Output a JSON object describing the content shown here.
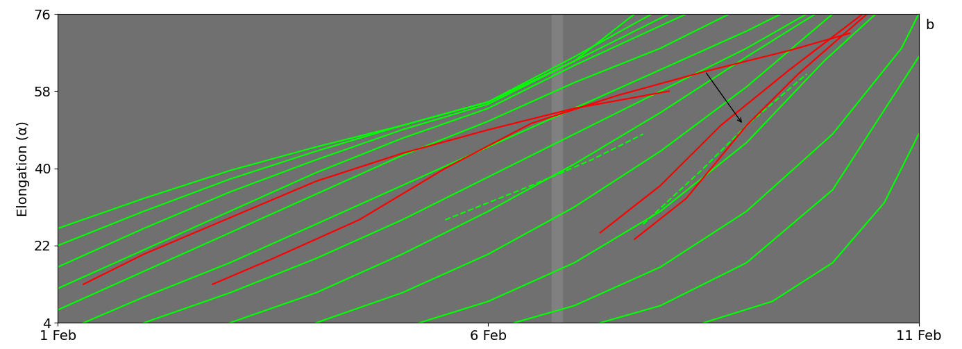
{
  "chart_data": {
    "type": "line",
    "panel_label": "b",
    "ylabel": "Elongation (α)",
    "xlim": [
      0,
      10
    ],
    "xticks": [
      {
        "value": 0,
        "label": "1 Feb"
      },
      {
        "value": 5,
        "label": "6 Feb"
      },
      {
        "value": 10,
        "label": "11 Feb"
      }
    ],
    "ylim": [
      4,
      76
    ],
    "yticks": [
      4,
      22,
      40,
      58,
      76
    ],
    "grid": false,
    "data_gap": [
      5.74,
      5.86
    ],
    "series": [
      {
        "color": "#00ff00",
        "line_style": "solid",
        "x": [
          0,
          1,
          2,
          3,
          4,
          5,
          6,
          6.7
        ],
        "values": [
          26,
          33,
          39.5,
          45,
          50,
          55.5,
          65,
          76
        ]
      },
      {
        "color": "#00ff00",
        "line_style": "solid",
        "x": [
          0,
          1,
          2,
          3,
          4,
          5,
          6,
          6.9
        ],
        "values": [
          22,
          30,
          37.5,
          44,
          50,
          55.5,
          66,
          76
        ]
      },
      {
        "color": "#00ff00",
        "line_style": "solid",
        "x": [
          0,
          1,
          2,
          3,
          4,
          5,
          6,
          7.1
        ],
        "values": [
          17,
          26,
          34.5,
          42,
          49,
          55,
          65,
          76
        ]
      },
      {
        "color": "#00ff00",
        "line_style": "solid",
        "x": [
          0,
          1,
          2,
          3,
          4,
          5,
          6,
          7.3
        ],
        "values": [
          12,
          21,
          30,
          39,
          47,
          54,
          64,
          76
        ]
      },
      {
        "color": "#00ff00",
        "line_style": "solid",
        "x": [
          0,
          1,
          2,
          3,
          4,
          5,
          6,
          7,
          7.8
        ],
        "values": [
          7,
          16,
          25,
          34,
          43,
          51,
          60,
          68,
          76
        ]
      },
      {
        "color": "#00ff00",
        "line_style": "solid",
        "x": [
          0.3,
          1,
          2,
          3,
          4,
          5,
          6,
          7,
          8,
          8.4
        ],
        "values": [
          4,
          10,
          18,
          27,
          36,
          45,
          54,
          63,
          72,
          76
        ]
      },
      {
        "color": "#00ff00",
        "line_style": "solid",
        "x": [
          1,
          2,
          3,
          4,
          5,
          6,
          7,
          8,
          8.7
        ],
        "values": [
          4,
          11,
          19,
          28,
          38,
          48,
          58,
          68,
          76
        ]
      },
      {
        "color": "#00ff00",
        "line_style": "solid",
        "x": [
          2,
          3,
          4,
          5,
          6,
          7,
          8,
          8.8
        ],
        "values": [
          4,
          11,
          20,
          30,
          41,
          53,
          66,
          76
        ]
      },
      {
        "color": "#00ff00",
        "line_style": "solid",
        "x": [
          3,
          4,
          5,
          6,
          7,
          8,
          9
        ],
        "values": [
          4,
          11,
          20,
          31,
          44,
          59,
          76
        ]
      },
      {
        "color": "#00ff00",
        "line_style": "solid",
        "x": [
          4.2,
          5,
          6,
          7,
          8,
          8.9,
          9.5
        ],
        "values": [
          4,
          9,
          18,
          30,
          46,
          65,
          76
        ]
      },
      {
        "color": "#00ff00",
        "line_style": "solid",
        "x": [
          5.3,
          6,
          7,
          8,
          9,
          9.8,
          10
        ],
        "values": [
          4,
          8,
          17,
          30,
          48,
          68,
          76
        ]
      },
      {
        "color": "#00ff00",
        "line_style": "solid",
        "x": [
          6.3,
          7,
          8,
          9,
          10
        ],
        "values": [
          4,
          8,
          18,
          35,
          66
        ]
      },
      {
        "color": "#00ff00",
        "line_style": "solid",
        "x": [
          7.5,
          8.3,
          9,
          9.6,
          10
        ],
        "values": [
          4,
          9,
          18,
          32,
          48
        ]
      },
      {
        "color": "#00ff00",
        "line_style": "dashed",
        "x": [
          4.5,
          5.5,
          6.2,
          6.8
        ],
        "values": [
          28,
          36,
          42,
          48
        ]
      },
      {
        "color": "#00ff00",
        "line_style": "dashed",
        "x": [
          6.8,
          7.5,
          8,
          8.7
        ],
        "values": [
          27,
          40,
          50,
          62
        ]
      },
      {
        "color": "#ff0000",
        "line_style": "solid",
        "x": [
          0.3,
          1,
          2,
          3,
          4,
          5,
          6,
          7.1
        ],
        "values": [
          13,
          20,
          28.5,
          37,
          43.5,
          49,
          54,
          58
        ]
      },
      {
        "color": "#ff0000",
        "line_style": "solid",
        "x": [
          1.8,
          2.5,
          3.5,
          4.5,
          5.5,
          6.5,
          7.5,
          8.5,
          9.2
        ],
        "values": [
          13,
          19,
          28,
          40,
          50.5,
          57,
          62.5,
          67.5,
          71.5
        ]
      },
      {
        "color": "#ff0000",
        "line_style": "solid",
        "x": [
          6.3,
          7,
          7.7,
          8.5,
          9.35
        ],
        "values": [
          25,
          36,
          50,
          63,
          76
        ]
      },
      {
        "color": "#ff0000",
        "line_style": "solid",
        "x": [
          6.7,
          7.3,
          8,
          8.6,
          9.4
        ],
        "values": [
          23.5,
          33,
          50,
          62,
          76
        ]
      }
    ]
  }
}
